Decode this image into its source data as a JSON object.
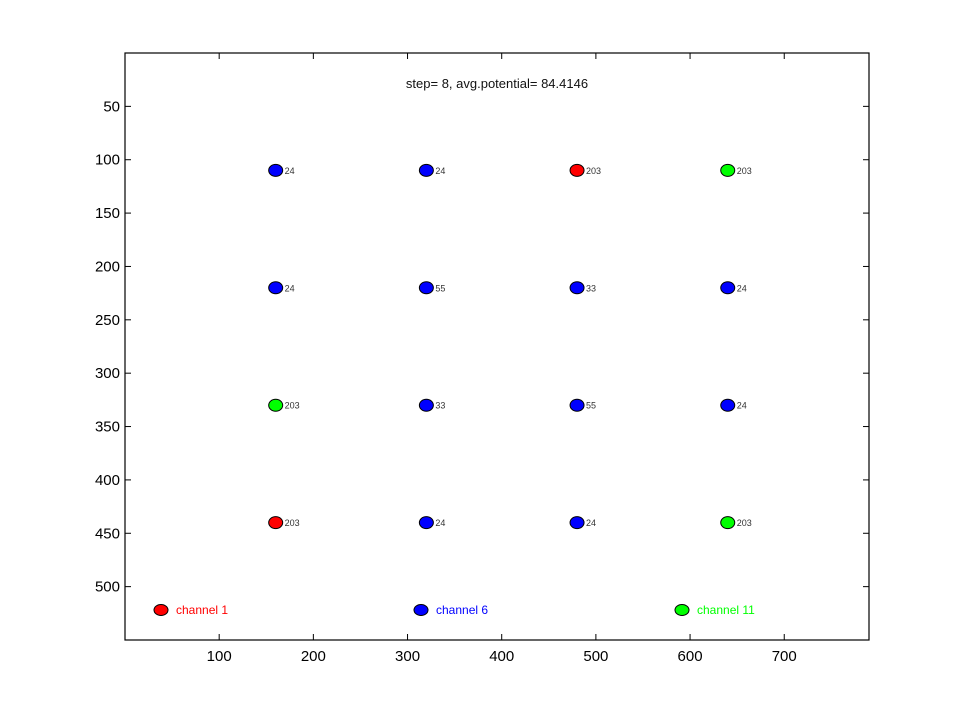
{
  "chart_data": {
    "type": "scatter",
    "title": "step= 8, avg.potential= 84.4146",
    "xlabel": "",
    "ylabel": "",
    "xlim": [
      0,
      790
    ],
    "ylim": [
      550,
      0
    ],
    "y_reversed": true,
    "x_ticks": [
      100,
      200,
      300,
      400,
      500,
      600,
      700
    ],
    "y_ticks": [
      50,
      100,
      150,
      200,
      250,
      300,
      350,
      400,
      450,
      500
    ],
    "grid": false,
    "legend_position": "bottom",
    "series": [
      {
        "name": "channel 1",
        "color": "#ff0000"
      },
      {
        "name": "channel 6",
        "color": "#0000ff"
      },
      {
        "name": "channel 11",
        "color": "#00ff00"
      }
    ],
    "points": [
      {
        "x": 160,
        "y": 110,
        "channel": "channel 6",
        "label": "24"
      },
      {
        "x": 320,
        "y": 110,
        "channel": "channel 6",
        "label": "24"
      },
      {
        "x": 480,
        "y": 110,
        "channel": "channel 1",
        "label": "203"
      },
      {
        "x": 640,
        "y": 110,
        "channel": "channel 11",
        "label": "203"
      },
      {
        "x": 160,
        "y": 220,
        "channel": "channel 6",
        "label": "24"
      },
      {
        "x": 320,
        "y": 220,
        "channel": "channel 6",
        "label": "55"
      },
      {
        "x": 480,
        "y": 220,
        "channel": "channel 6",
        "label": "33"
      },
      {
        "x": 640,
        "y": 220,
        "channel": "channel 6",
        "label": "24"
      },
      {
        "x": 160,
        "y": 330,
        "channel": "channel 11",
        "label": "203"
      },
      {
        "x": 320,
        "y": 330,
        "channel": "channel 6",
        "label": "33"
      },
      {
        "x": 480,
        "y": 330,
        "channel": "channel 6",
        "label": "55"
      },
      {
        "x": 640,
        "y": 330,
        "channel": "channel 6",
        "label": "24"
      },
      {
        "x": 160,
        "y": 440,
        "channel": "channel 1",
        "label": "203"
      },
      {
        "x": 320,
        "y": 440,
        "channel": "channel 6",
        "label": "24"
      },
      {
        "x": 480,
        "y": 440,
        "channel": "channel 6",
        "label": "24"
      },
      {
        "x": 640,
        "y": 440,
        "channel": "channel 11",
        "label": "203"
      }
    ]
  }
}
